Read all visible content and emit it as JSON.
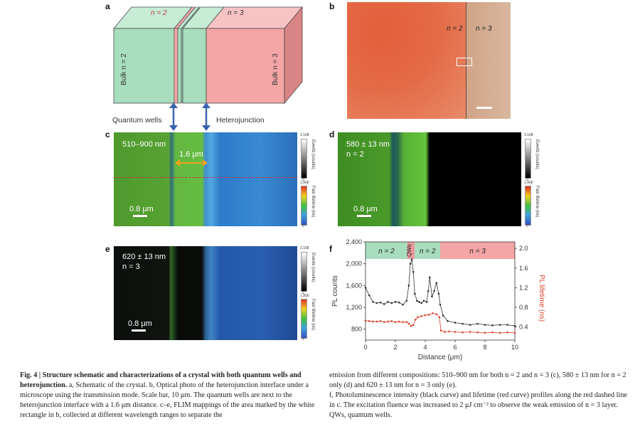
{
  "panel_letters": {
    "a": "a",
    "b": "b",
    "c": "c",
    "d": "d",
    "e": "e",
    "f": "f"
  },
  "panel_a": {
    "n2_top": "n = 2",
    "n3_top": "n = 3",
    "bulk_n2": "Bulk n = 2",
    "bulk_n3": "Bulk n = 3",
    "quantum_wells": "Quantum wells",
    "heterojunction": "Heterojunction"
  },
  "panel_b": {
    "n2": "n = 2",
    "n3": "n = 3"
  },
  "panel_c": {
    "range": "510–900 nm",
    "distance": "1.6 μm",
    "scale": "0.8 μm"
  },
  "panel_d": {
    "range": "580 ± 13 nm",
    "n": "n = 2",
    "scale": "0.8 μm"
  },
  "panel_e": {
    "range": "620 ± 13 nm",
    "n": "n = 3",
    "scale": "0.8 μm"
  },
  "colorbar": {
    "events_max": "2,168",
    "events_min": "0",
    "events_title": "Events (counts)",
    "life_max": "1,900",
    "life_min": "0",
    "life_title": "Fast lifetime (ns)"
  },
  "chart_data": {
    "type": "line",
    "xlabel": "Distance (μm)",
    "ylabel_left": "PL counts",
    "ylabel_right": "PL lifetime (ns)",
    "xlim": [
      0,
      10
    ],
    "ylim_left": [
      600,
      2400
    ],
    "ylim_right": [
      0.133,
      2.133
    ],
    "x_ticks": [
      "0",
      "2",
      "4",
      "6",
      "8",
      "10"
    ],
    "y_ticks_left": [
      "800",
      "1,200",
      "1,600",
      "2,000",
      "2,400"
    ],
    "y_ticks_right": [
      "0.4",
      "0.8",
      "1.2",
      "1.6",
      "2.0"
    ],
    "regions": [
      {
        "label": "n = 2",
        "from": 0,
        "to": 2.8,
        "color": "#a8ddbe"
      },
      {
        "label": "QWs",
        "from": 2.8,
        "to": 3.3,
        "color": "#e89a9a"
      },
      {
        "label": "n = 2",
        "from": 3.3,
        "to": 5.0,
        "color": "#a8ddbe"
      },
      {
        "label": "n = 3",
        "from": 5.0,
        "to": 10,
        "color": "#f4a5a5"
      }
    ],
    "series": [
      {
        "name": "PL counts",
        "color": "#333333",
        "axis": "left",
        "x": [
          0,
          0.25,
          0.5,
          0.75,
          1,
          1.25,
          1.5,
          1.75,
          2,
          2.25,
          2.5,
          2.75,
          2.9,
          3.0,
          3.1,
          3.2,
          3.3,
          3.45,
          3.6,
          3.75,
          3.9,
          4.1,
          4.2,
          4.3,
          4.45,
          4.6,
          4.75,
          4.9,
          5.0,
          5.2,
          5.5,
          6,
          6.5,
          7,
          7.5,
          8,
          8.5,
          9,
          9.5,
          10
        ],
        "y": [
          1560,
          1420,
          1300,
          1280,
          1290,
          1260,
          1300,
          1280,
          1300,
          1290,
          1250,
          1320,
          1600,
          2000,
          2080,
          1850,
          1450,
          1320,
          1300,
          1280,
          1320,
          1300,
          1500,
          1750,
          1400,
          1500,
          1650,
          1450,
          1250,
          1050,
          950,
          920,
          900,
          880,
          900,
          880,
          870,
          880,
          880,
          860
        ]
      },
      {
        "name": "PL lifetime",
        "color": "#d9422b",
        "axis": "right",
        "x": [
          0,
          0.25,
          0.5,
          0.75,
          1,
          1.25,
          1.5,
          1.75,
          2,
          2.25,
          2.5,
          2.75,
          2.9,
          3.05,
          3.2,
          3.35,
          3.5,
          3.75,
          4,
          4.25,
          4.5,
          4.75,
          4.95,
          5.05,
          5.3,
          5.6,
          6,
          6.5,
          7,
          7.5,
          8,
          8.5,
          9,
          9.5,
          10
        ],
        "y": [
          0.53,
          0.52,
          0.51,
          0.51,
          0.52,
          0.5,
          0.51,
          0.52,
          0.5,
          0.51,
          0.5,
          0.5,
          0.47,
          0.42,
          0.44,
          0.55,
          0.6,
          0.62,
          0.64,
          0.65,
          0.68,
          0.66,
          0.6,
          0.33,
          0.3,
          0.31,
          0.3,
          0.29,
          0.3,
          0.29,
          0.28,
          0.29,
          0.28,
          0.29,
          0.28
        ]
      }
    ]
  },
  "caption": {
    "fig_head": "Fig. 4 | Structure schematic and characterizations of a crystal with both quantum wells and heterojunction.",
    "left_body": " a, Schematic of the crystal. b, Optical photo of the heterojunction interface under a microscope using the transmission mode. Scale bar, 10 μm. The quantum wells are next to the heterojunction interface with a 1.6 μm distance. c–e, FLIM mappings of the area marked by the white rectangle in b, collected at different wavelength ranges to separate the",
    "right_body_1": "emission from different compositions: 510–900 nm for both n = 2 and n = 3 (c), 580 ± 13 nm for n = 2 only (d) and 620 ± 13 nm for n = 3 only (e).",
    "right_body_2": "f, Photoluminescence intensity (black curve) and lifetime (red curve) profiles along the red dashed line in c. The excitation fluence was increased to 2 μJ cm⁻² to observe the weak emission of n = 3 layer. QWs, quantum wells."
  }
}
